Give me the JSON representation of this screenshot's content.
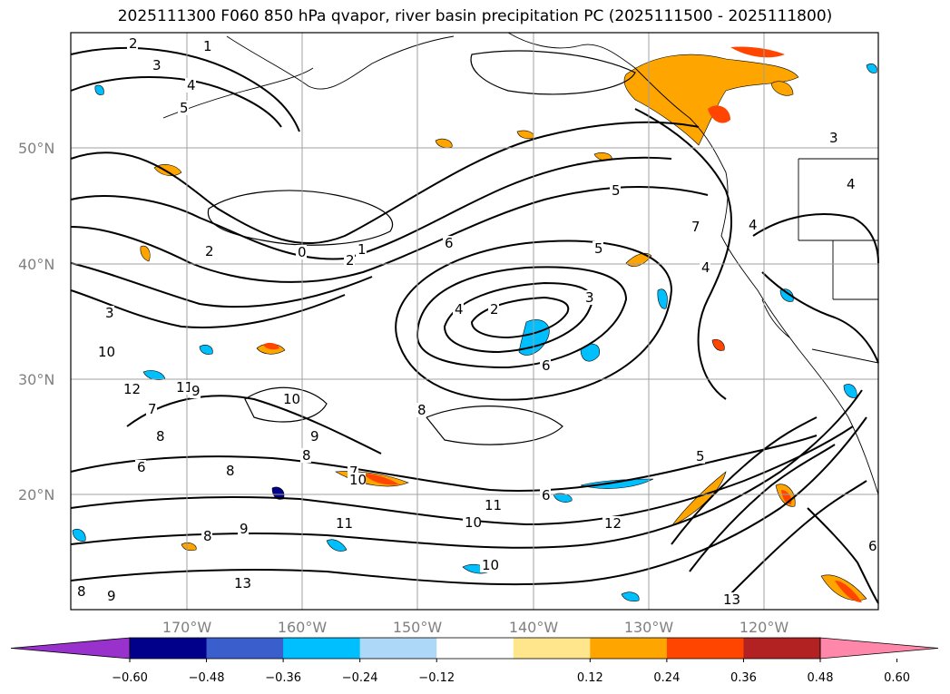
{
  "title": "2025111300 F060 850 hPa qvapor, river basin precipitation PC (2025111500 - 2025111800)",
  "chart_data": {
    "type": "heatmap",
    "title": "2025111300 F060 850 hPa qvapor, river basin precipitation PC (2025111500 - 2025111800)",
    "lat_ticks": [
      "20°N",
      "30°N",
      "40°N",
      "50°N"
    ],
    "lon_ticks": [
      "170°W",
      "160°W",
      "150°W",
      "140°W",
      "130°W",
      "120°W"
    ],
    "grid": true,
    "contour_labels": [
      "2",
      "1",
      "3",
      "4",
      "5",
      "2",
      "0",
      "1",
      "2",
      "6",
      "5",
      "4",
      "2",
      "3",
      "6",
      "5",
      "7",
      "4",
      "3",
      "10",
      "12",
      "11",
      "9",
      "7",
      "8",
      "6",
      "8",
      "10",
      "9",
      "8",
      "7",
      "8",
      "10",
      "11",
      "10",
      "12",
      "11",
      "9",
      "8",
      "13",
      "10",
      "8",
      "13",
      "9",
      "5",
      "6",
      "3",
      "4",
      "4",
      "6"
    ],
    "colorbar": {
      "ticks": [
        "−0.60",
        "−0.48",
        "−0.36",
        "−0.24",
        "−0.12",
        "0.12",
        "0.24",
        "0.36",
        "0.48",
        "0.60"
      ],
      "colors": [
        "#9932CC",
        "#00008B",
        "#3A5FCD",
        "#00BFFF",
        "#ADD8F7",
        "#FFFFFF",
        "#FFE68C",
        "#FFA500",
        "#FF4500",
        "#B22222",
        "#FF88AA"
      ],
      "extend": "both"
    }
  }
}
